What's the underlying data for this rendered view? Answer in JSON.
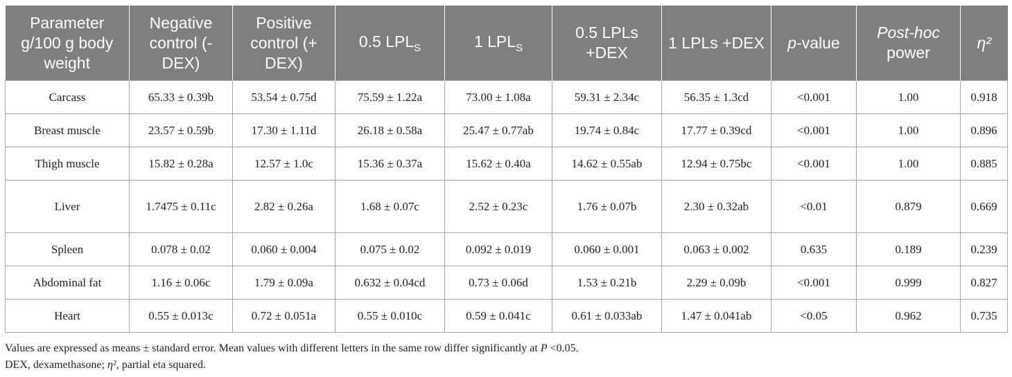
{
  "table": {
    "headers": {
      "param": "Parameter g/100 g body weight",
      "neg": "Negative control (-DEX)",
      "pos": "Positive control (+ DEX)",
      "lpl05_main": "0.5 LPL",
      "lpl05_sub": "S",
      "lpl1_main": "1 LPL",
      "lpl1_sub": "S",
      "lpl05dex": "0.5 LPLs +DEX",
      "lpl1dex": "1 LPLs +DEX",
      "p_italic": "p",
      "p_rest": "-value",
      "post_italic": "Post-hoc",
      "post_rest": " power",
      "eta": "η²"
    },
    "rows": [
      [
        "Carcass",
        "65.33 ± 0.39b",
        "53.54 ± 0.75d",
        "75.59 ± 1.22a",
        "73.00 ± 1.08a",
        "59.31 ± 2.34c",
        "56.35 ± 1.3cd",
        "<0.001",
        "1.00",
        "0.918"
      ],
      [
        "Breast muscle",
        "23.57 ± 0.59b",
        "17.30 ± 1.11d",
        "26.18 ± 0.58a",
        "25.47 ± 0.77ab",
        "19.74 ± 0.84c",
        "17.77 ± 0.39cd",
        "<0.001",
        "1.00",
        "0.896"
      ],
      [
        "Thigh muscle",
        "15.82 ± 0.28a",
        "12.57 ± 1.0c",
        "15.36 ± 0.37a",
        "15.62 ± 0.40a",
        "14.62 ± 0.55ab",
        "12.94 ± 0.75bc",
        "<0.001",
        "1.00",
        "0.885"
      ],
      [
        "Liver",
        "1.7475 ± 0.11c",
        "2.82 ± 0.26a",
        "1.68 ± 0.07c",
        "2.52 ± 0.23c",
        "1.76 ± 0.07b",
        "2.30 ± 0.32ab",
        "<0.01",
        "0.879",
        "0.669"
      ],
      [
        "Spleen",
        "0.078 ± 0.02",
        "0.060 ± 0.004",
        "0.075 ± 0.02",
        "0.092 ± 0.019",
        "0.060 ± 0.001",
        "0.063 ± 0.002",
        "0.635",
        "0.189",
        "0.239"
      ],
      [
        "Abdominal fat",
        "1.16 ± 0.06c",
        "1.79 ± 0.09a",
        "0.632 ± 0.04cd",
        "0.73 ± 0.06d",
        "1.53 ± 0.21b",
        "2.29 ± 0.09b",
        "<0.001",
        "0.999",
        "0.827"
      ],
      [
        "Heart",
        "0.55 ± 0.013c",
        "0.72 ± 0.051a",
        "0.55 ± 0.010c",
        "0.59 ± 0.041c",
        "0.61 ± 0.033ab",
        "1.47 ± 0.041ab",
        "<0.05",
        "0.962",
        "0.735"
      ]
    ]
  },
  "footnotes": {
    "line1_a": "Values are expressed as means ± standard error. Mean values with different letters in the same row differ significantly at ",
    "line1_p": "P",
    "line1_b": " <0.05.",
    "line2_a": "DEX, dexamethasone; ",
    "line2_eta": "η²",
    "line2_b": ", partial eta squared."
  }
}
